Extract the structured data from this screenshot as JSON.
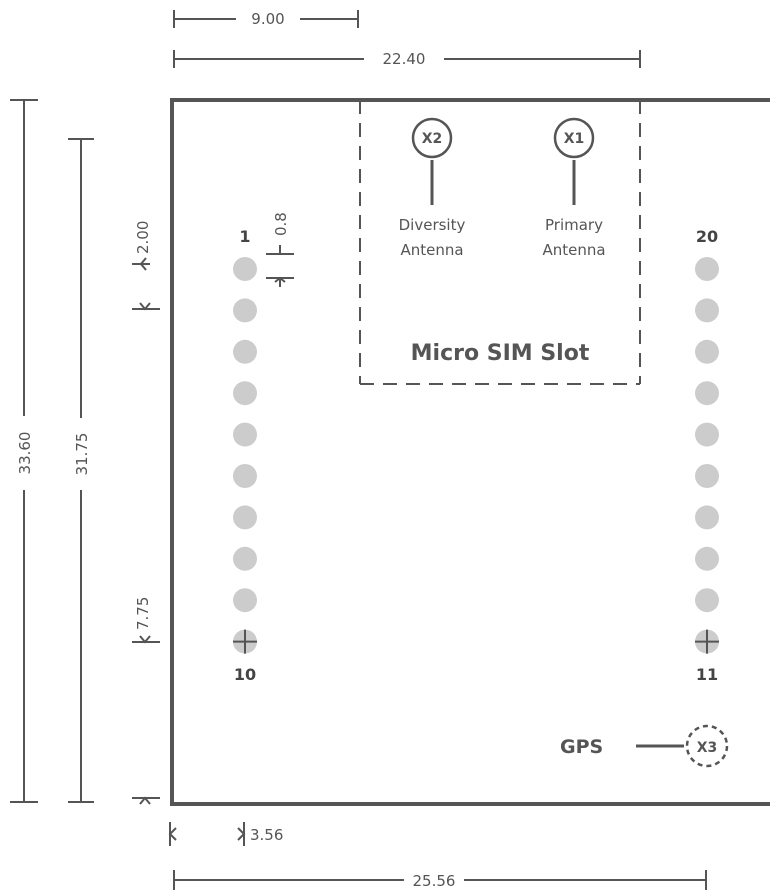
{
  "dimensions": {
    "pin_offset_top": "9.00",
    "slot_width": "22.40",
    "board_height": "33.60",
    "pin_span_height": "31.75",
    "first_pin_offset": "2.00",
    "pad_size": "0.8",
    "last_pin_offset": "7.75",
    "edge_offset": "3.56",
    "board_width": "25.56"
  },
  "pins": {
    "left_top": "1",
    "left_bottom": "10",
    "right_top": "20",
    "right_bottom": "11",
    "per_column": 10
  },
  "antennas": [
    {
      "id": "X2",
      "label_line1": "Diversity",
      "label_line2": "Antenna"
    },
    {
      "id": "X1",
      "label_line1": "Primary",
      "label_line2": "Antenna"
    }
  ],
  "slot": {
    "label": "Micro SIM Slot"
  },
  "gps": {
    "label": "GPS",
    "id": "X3"
  },
  "colors": {
    "board_outline": "#555555",
    "pin_fill": "#cccccc",
    "text": "#555555",
    "dim_line": "#555555"
  }
}
